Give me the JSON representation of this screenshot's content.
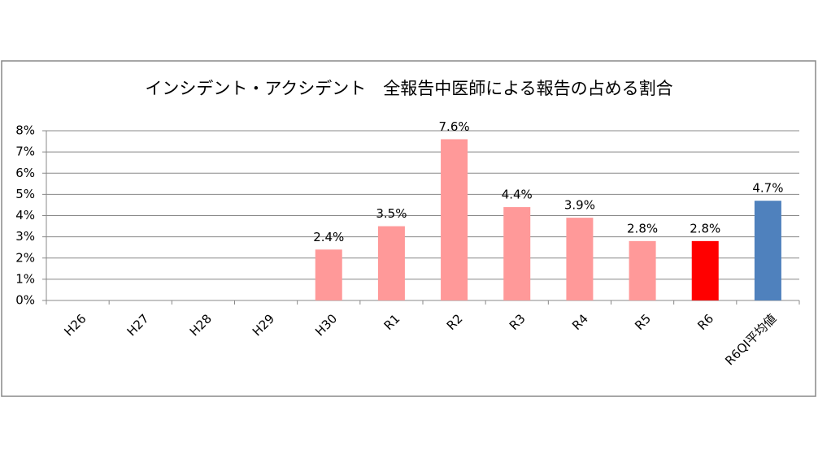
{
  "chart_data": {
    "type": "bar",
    "title": "インシデント・アクシデント　全報告中医師による報告の占める割合",
    "categories": [
      "H26",
      "H27",
      "H28",
      "H29",
      "H30",
      "R1",
      "R2",
      "R3",
      "R4",
      "R5",
      "R6",
      "R6QI平均値"
    ],
    "values": [
      null,
      null,
      null,
      null,
      2.4,
      3.5,
      7.6,
      4.4,
      3.9,
      2.8,
      2.8,
      4.7
    ],
    "value_labels": [
      null,
      null,
      null,
      null,
      "2.4%",
      "3.5%",
      "7.6%",
      "4.4%",
      "3.9%",
      "2.8%",
      "2.8%",
      "4.7%"
    ],
    "colors": [
      null,
      null,
      null,
      null,
      "#ff9999",
      "#ff9999",
      "#ff9999",
      "#ff9999",
      "#ff9999",
      "#ff9999",
      "#ff0000",
      "#4f81bd"
    ],
    "ylim": [
      0,
      8
    ],
    "yticks": [
      {
        "value": 0,
        "label": "0%"
      },
      {
        "value": 1,
        "label": "1%"
      },
      {
        "value": 2,
        "label": "2%"
      },
      {
        "value": 3,
        "label": "3%"
      },
      {
        "value": 4,
        "label": "4%"
      },
      {
        "value": 5,
        "label": "5%"
      },
      {
        "value": 6,
        "label": "6%"
      },
      {
        "value": 7,
        "label": "7%"
      },
      {
        "value": 8,
        "label": "8%"
      }
    ],
    "grid": true
  }
}
